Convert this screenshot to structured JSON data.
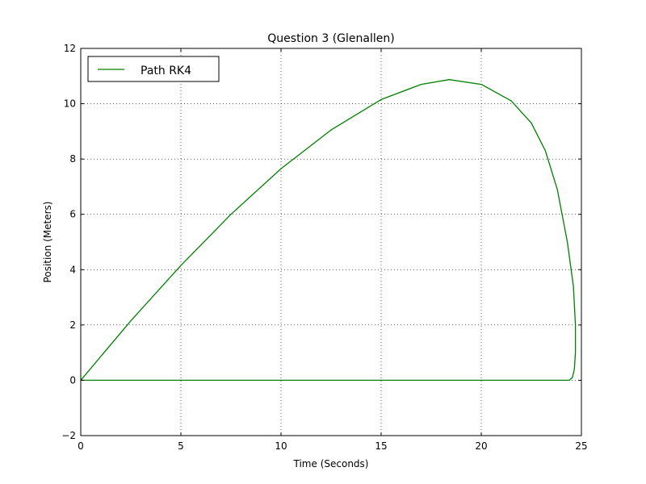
{
  "chart_data": {
    "type": "line",
    "title": "Question 3 (Glenallen)",
    "xlabel": "Time (Seconds)",
    "ylabel": "Position (Meters)",
    "xlim": [
      0,
      25
    ],
    "ylim": [
      -2,
      12
    ],
    "xticks": [
      0,
      5,
      10,
      15,
      20,
      25
    ],
    "yticks": [
      -2,
      0,
      2,
      4,
      6,
      8,
      10,
      12
    ],
    "xtick_labels": [
      "0",
      "5",
      "10",
      "15",
      "20",
      "25"
    ],
    "ytick_labels": [
      "−2",
      "0",
      "2",
      "4",
      "6",
      "8",
      "10",
      "12"
    ],
    "grid": true,
    "legend_position": "top-left",
    "series": [
      {
        "name": "Path RK4",
        "color": "#008000",
        "x": [
          0,
          2.5,
          5,
          7.5,
          10,
          12.5,
          15,
          17,
          18.4,
          20,
          21.5,
          22.5,
          23.2,
          23.8,
          24.3,
          24.6,
          24.7,
          24.7,
          24.65,
          24.55,
          24.4,
          0
        ],
        "y": [
          0,
          2.15,
          4.15,
          6.0,
          7.65,
          9.05,
          10.15,
          10.7,
          10.87,
          10.7,
          10.1,
          9.3,
          8.3,
          6.9,
          5.0,
          3.4,
          2.0,
          1.0,
          0.4,
          0.1,
          0,
          0
        ]
      }
    ]
  }
}
